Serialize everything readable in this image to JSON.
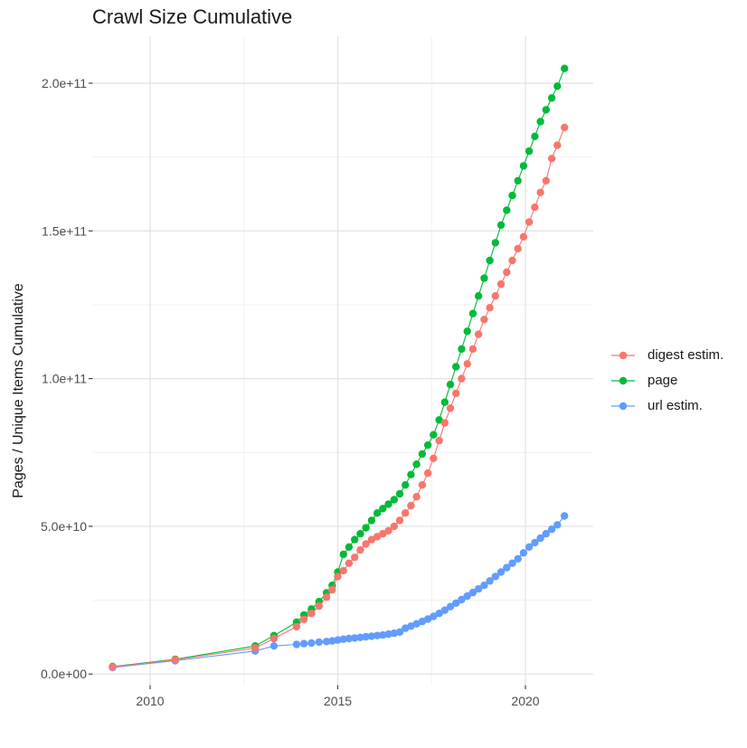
{
  "chart_data": {
    "type": "line",
    "title": "Crawl Size Cumulative",
    "xlabel": "",
    "ylabel": "Pages / Unique Items Cumulative",
    "xlim": [
      2008.5,
      2021.8
    ],
    "ylim": [
      0,
      216000000000.0
    ],
    "grid": true,
    "legend_position": "right",
    "marker": "point",
    "x_ticks": [
      {
        "label": "2010",
        "value": 2010
      },
      {
        "label": "2015",
        "value": 2015
      },
      {
        "label": "2020",
        "value": 2020
      }
    ],
    "x_minor_ticks": [
      2012.5,
      2017.5
    ],
    "y_ticks": [
      {
        "label": "0.0e+00",
        "value": 0
      },
      {
        "label": "5.0e+10",
        "value": 50000000000.0
      },
      {
        "label": "1.0e+11",
        "value": 100000000000.0
      },
      {
        "label": "1.5e+11",
        "value": 150000000000.0
      },
      {
        "label": "2.0e+11",
        "value": 200000000000.0
      }
    ],
    "y_minor_ticks": [
      25000000000.0,
      75000000000.0,
      125000000000.0,
      175000000000.0
    ],
    "colors": {
      "digest": "#F8766D",
      "page": "#00BA38",
      "url": "#619CFF",
      "grid_major": "#E5E5E5",
      "grid_minor": "#EFEFEF",
      "tick_text": "#4D4D4D",
      "tick_mark": "#333333"
    },
    "series": [
      {
        "name": "digest estim.",
        "color": "#F8766D",
        "points": [
          [
            2009.0,
            2400000000.0
          ],
          [
            2010.67,
            4800000000.0
          ],
          [
            2012.8,
            8800000000.0
          ],
          [
            2013.3,
            12000000000.0
          ],
          [
            2013.9,
            16000000000.0
          ],
          [
            2014.1,
            18500000000.0
          ],
          [
            2014.3,
            20500000000.0
          ],
          [
            2014.5,
            23000000000.0
          ],
          [
            2014.7,
            26000000000.0
          ],
          [
            2014.85,
            28500000000.0
          ],
          [
            2015.0,
            33000000000.0
          ],
          [
            2015.15,
            35000000000.0
          ],
          [
            2015.3,
            37500000000.0
          ],
          [
            2015.45,
            39500000000.0
          ],
          [
            2015.6,
            42000000000.0
          ],
          [
            2015.75,
            44000000000.0
          ],
          [
            2015.9,
            45500000000.0
          ],
          [
            2016.05,
            46500000000.0
          ],
          [
            2016.2,
            47500000000.0
          ],
          [
            2016.35,
            48500000000.0
          ],
          [
            2016.5,
            50000000000.0
          ],
          [
            2016.65,
            52000000000.0
          ],
          [
            2016.8,
            54500000000.0
          ],
          [
            2016.95,
            57000000000.0
          ],
          [
            2017.1,
            60000000000.0
          ],
          [
            2017.25,
            64000000000.0
          ],
          [
            2017.4,
            68000000000.0
          ],
          [
            2017.55,
            73000000000.0
          ],
          [
            2017.7,
            79000000000.0
          ],
          [
            2017.85,
            85000000000.0
          ],
          [
            2018.0,
            90000000000.0
          ],
          [
            2018.15,
            95000000000.0
          ],
          [
            2018.3,
            100000000000.0
          ],
          [
            2018.45,
            105000000000.0
          ],
          [
            2018.6,
            110000000000.0
          ],
          [
            2018.75,
            115000000000.0
          ],
          [
            2018.9,
            120000000000.0
          ],
          [
            2019.05,
            124000000000.0
          ],
          [
            2019.2,
            128000000000.0
          ],
          [
            2019.35,
            132000000000.0
          ],
          [
            2019.5,
            136000000000.0
          ],
          [
            2019.65,
            140000000000.0
          ],
          [
            2019.8,
            144000000000.0
          ],
          [
            2019.95,
            148000000000.0
          ],
          [
            2020.1,
            153000000000.0
          ],
          [
            2020.25,
            158000000000.0
          ],
          [
            2020.4,
            163000000000.0
          ],
          [
            2020.55,
            167000000000.0
          ],
          [
            2020.7,
            174500000000.0
          ],
          [
            2020.85,
            179000000000.0
          ],
          [
            2021.04,
            185000000000.0
          ]
        ]
      },
      {
        "name": "page",
        "color": "#00BA38",
        "points": [
          [
            2009.0,
            2500000000.0
          ],
          [
            2010.67,
            5000000000.0
          ],
          [
            2012.8,
            9500000000.0
          ],
          [
            2013.3,
            13000000000.0
          ],
          [
            2013.9,
            17500000000.0
          ],
          [
            2014.1,
            20000000000.0
          ],
          [
            2014.3,
            22000000000.0
          ],
          [
            2014.5,
            24500000000.0
          ],
          [
            2014.7,
            27500000000.0
          ],
          [
            2014.85,
            30000000000.0
          ],
          [
            2015.0,
            34500000000.0
          ],
          [
            2015.15,
            40500000000.0
          ],
          [
            2015.3,
            43000000000.0
          ],
          [
            2015.45,
            45500000000.0
          ],
          [
            2015.6,
            47500000000.0
          ],
          [
            2015.75,
            49500000000.0
          ],
          [
            2015.9,
            52000000000.0
          ],
          [
            2016.05,
            54500000000.0
          ],
          [
            2016.2,
            56000000000.0
          ],
          [
            2016.35,
            57500000000.0
          ],
          [
            2016.5,
            59000000000.0
          ],
          [
            2016.65,
            61000000000.0
          ],
          [
            2016.8,
            64000000000.0
          ],
          [
            2016.95,
            67500000000.0
          ],
          [
            2017.1,
            71000000000.0
          ],
          [
            2017.25,
            74500000000.0
          ],
          [
            2017.4,
            77500000000.0
          ],
          [
            2017.55,
            81000000000.0
          ],
          [
            2017.7,
            86000000000.0
          ],
          [
            2017.85,
            92000000000.0
          ],
          [
            2018.0,
            98000000000.0
          ],
          [
            2018.15,
            104000000000.0
          ],
          [
            2018.3,
            110000000000.0
          ],
          [
            2018.45,
            116000000000.0
          ],
          [
            2018.6,
            122000000000.0
          ],
          [
            2018.75,
            128000000000.0
          ],
          [
            2018.9,
            134000000000.0
          ],
          [
            2019.05,
            140000000000.0
          ],
          [
            2019.2,
            146000000000.0
          ],
          [
            2019.35,
            152000000000.0
          ],
          [
            2019.5,
            157000000000.0
          ],
          [
            2019.65,
            162000000000.0
          ],
          [
            2019.8,
            167000000000.0
          ],
          [
            2019.95,
            172000000000.0
          ],
          [
            2020.1,
            177000000000.0
          ],
          [
            2020.25,
            182000000000.0
          ],
          [
            2020.4,
            187000000000.0
          ],
          [
            2020.55,
            191000000000.0
          ],
          [
            2020.7,
            195000000000.0
          ],
          [
            2020.85,
            199000000000.0
          ],
          [
            2021.04,
            205000000000.0
          ]
        ]
      },
      {
        "name": "url estim.",
        "color": "#619CFF",
        "points": [
          [
            2009.0,
            2200000000.0
          ],
          [
            2010.67,
            4500000000.0
          ],
          [
            2012.8,
            7800000000.0
          ],
          [
            2013.3,
            9500000000.0
          ],
          [
            2013.9,
            10000000000.0
          ],
          [
            2014.1,
            10300000000.0
          ],
          [
            2014.3,
            10500000000.0
          ],
          [
            2014.5,
            10800000000.0
          ],
          [
            2014.7,
            11000000000.0
          ],
          [
            2014.85,
            11200000000.0
          ],
          [
            2015.0,
            11500000000.0
          ],
          [
            2015.15,
            11800000000.0
          ],
          [
            2015.3,
            12000000000.0
          ],
          [
            2015.45,
            12200000000.0
          ],
          [
            2015.6,
            12400000000.0
          ],
          [
            2015.75,
            12600000000.0
          ],
          [
            2015.9,
            12800000000.0
          ],
          [
            2016.05,
            13000000000.0
          ],
          [
            2016.2,
            13200000000.0
          ],
          [
            2016.35,
            13500000000.0
          ],
          [
            2016.5,
            13800000000.0
          ],
          [
            2016.65,
            14200000000.0
          ],
          [
            2016.8,
            15500000000.0
          ],
          [
            2016.95,
            16200000000.0
          ],
          [
            2017.1,
            17000000000.0
          ],
          [
            2017.25,
            17800000000.0
          ],
          [
            2017.4,
            18600000000.0
          ],
          [
            2017.55,
            19500000000.0
          ],
          [
            2017.7,
            20500000000.0
          ],
          [
            2017.85,
            21600000000.0
          ],
          [
            2018.0,
            22800000000.0
          ],
          [
            2018.15,
            24000000000.0
          ],
          [
            2018.3,
            25200000000.0
          ],
          [
            2018.45,
            26400000000.0
          ],
          [
            2018.6,
            27600000000.0
          ],
          [
            2018.75,
            28800000000.0
          ],
          [
            2018.9,
            30000000000.0
          ],
          [
            2019.05,
            31500000000.0
          ],
          [
            2019.2,
            33000000000.0
          ],
          [
            2019.35,
            34500000000.0
          ],
          [
            2019.5,
            36000000000.0
          ],
          [
            2019.65,
            37500000000.0
          ],
          [
            2019.8,
            39000000000.0
          ],
          [
            2019.95,
            41000000000.0
          ],
          [
            2020.1,
            43000000000.0
          ],
          [
            2020.25,
            44500000000.0
          ],
          [
            2020.4,
            46000000000.0
          ],
          [
            2020.55,
            47500000000.0
          ],
          [
            2020.7,
            49000000000.0
          ],
          [
            2020.85,
            50500000000.0
          ],
          [
            2021.04,
            53500000000.0
          ]
        ]
      }
    ]
  }
}
